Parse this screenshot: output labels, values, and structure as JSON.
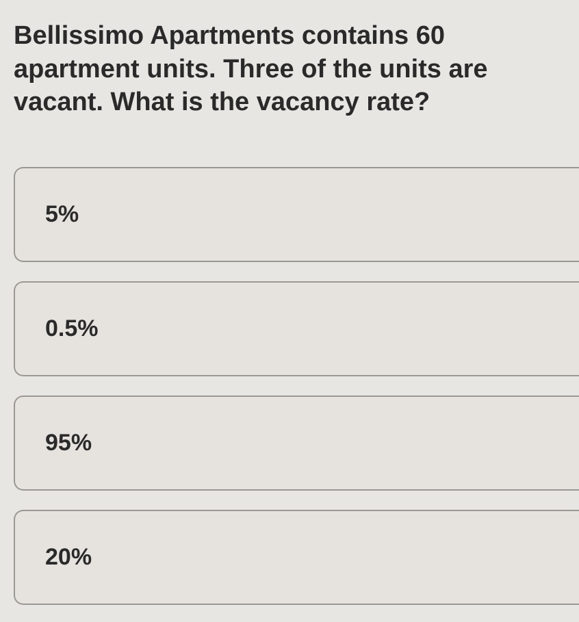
{
  "question": "Bellissimo Apartments contains 60 apartment units. Three of the units are vacant. What is the vacancy rate?",
  "options": [
    {
      "label": "5%"
    },
    {
      "label": "0.5%"
    },
    {
      "label": "95%"
    },
    {
      "label": "20%"
    }
  ],
  "styling": {
    "background_color": "#e8e6e3",
    "option_border_color": "#9a9893",
    "option_background": "#e6e3df",
    "text_color": "#2a2a2a",
    "question_fontsize": 38,
    "question_fontweight": 700,
    "option_fontsize": 34,
    "option_fontweight": 600,
    "option_border_radius": 14,
    "option_padding_left": 44,
    "option_gap": 28
  }
}
